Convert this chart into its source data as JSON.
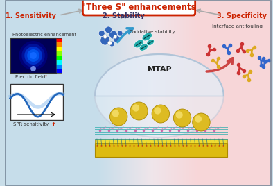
{
  "title": "\"Three S\" enhancements",
  "title_color": "#cc2200",
  "title_border": "#cc2200",
  "label1": "1. Sensitivity",
  "label1_color": "#cc2200",
  "label2": "2. Stability",
  "label2_color": "#333366",
  "label3": "3. Specificity",
  "label3_color": "#cc2200",
  "sublabel_photo": "Photoelectric enhancement",
  "sublabel_efield": "Electric field",
  "sublabel_spr": "SPR sensitivity",
  "sublabel_oxid": "Oxidative stability",
  "sublabel_anti": "Interface antifouling",
  "sublabel_mtap": "MTAP",
  "arrow_blue": "#3399cc",
  "arrow_red": "#cc4444",
  "antibody_colors": [
    "#cc3333",
    "#ddaa22",
    "#3366cc"
  ],
  "mol_blue": "#3366bb",
  "mol_teal": "#33aaaa",
  "gold_color": "#ddbb22",
  "gold_edge": "#aa8800"
}
